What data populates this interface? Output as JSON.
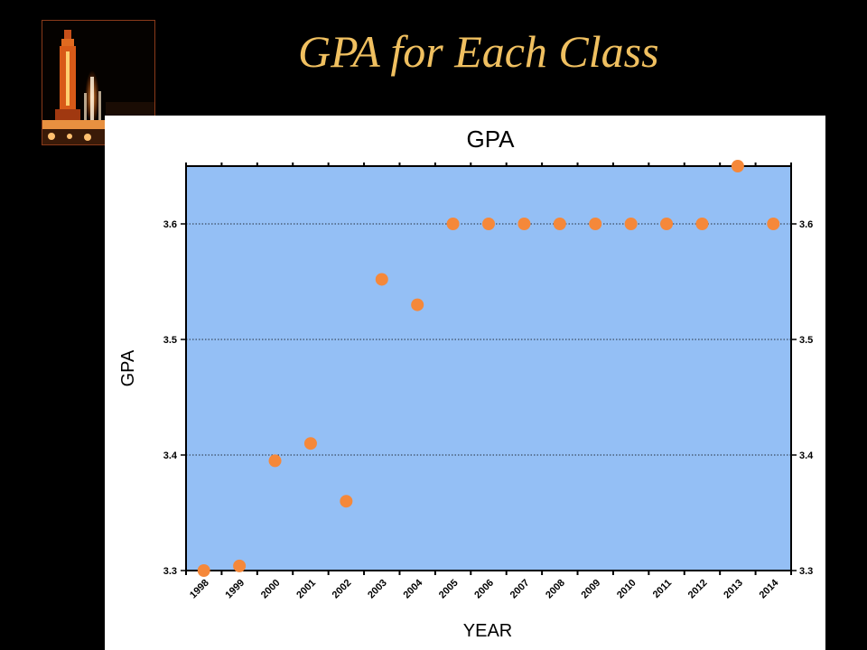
{
  "slide": {
    "title": "GPA for Each Class"
  },
  "chart_data": {
    "type": "scatter",
    "title": "GPA",
    "xlabel": "YEAR",
    "ylabel": "GPA",
    "x": [
      "1998",
      "1999",
      "2000",
      "2001",
      "2002",
      "2003",
      "2004",
      "2005",
      "2006",
      "2007",
      "2008",
      "2009",
      "2010",
      "2011",
      "2012",
      "2013",
      "2014"
    ],
    "series": [
      {
        "values": [
          3.3,
          3.304,
          3.395,
          3.41,
          3.36,
          3.552,
          3.53,
          3.6,
          3.6,
          3.6,
          3.6,
          3.6,
          3.6,
          3.6,
          3.6,
          3.65,
          3.6
        ]
      }
    ],
    "ylim": [
      3.3,
      3.65
    ],
    "yticks": [
      "3.3",
      "3.4",
      "3.5",
      "3.6"
    ],
    "grid": "horizontal dotted",
    "colors": {
      "plot_background": "#94bff5",
      "marker": "#f5883a"
    }
  }
}
